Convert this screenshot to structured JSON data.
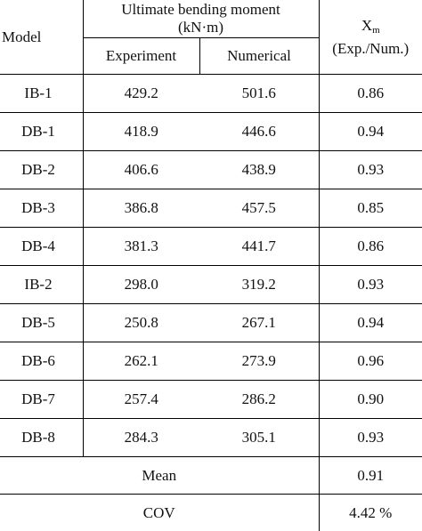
{
  "table": {
    "header": {
      "model": "Model",
      "group_title_line1": "Ultimate bending moment",
      "group_title_line2": "(kN·m)",
      "experiment": "Experiment",
      "numerical": "Numerical",
      "xm_symbol": "X",
      "xm_subscript": "m",
      "xm_ratio": "(Exp./Num.)"
    },
    "rows": [
      {
        "model": "IB-1",
        "experiment": "429.2",
        "numerical": "501.6",
        "xm": "0.86"
      },
      {
        "model": "DB-1",
        "experiment": "418.9",
        "numerical": "446.6",
        "xm": "0.94"
      },
      {
        "model": "DB-2",
        "experiment": "406.6",
        "numerical": "438.9",
        "xm": "0.93"
      },
      {
        "model": "DB-3",
        "experiment": "386.8",
        "numerical": "457.5",
        "xm": "0.85"
      },
      {
        "model": "DB-4",
        "experiment": "381.3",
        "numerical": "441.7",
        "xm": "0.86"
      },
      {
        "model": "IB-2",
        "experiment": "298.0",
        "numerical": "319.2",
        "xm": "0.93"
      },
      {
        "model": "DB-5",
        "experiment": "250.8",
        "numerical": "267.1",
        "xm": "0.94"
      },
      {
        "model": "DB-6",
        "experiment": "262.1",
        "numerical": "273.9",
        "xm": "0.96"
      },
      {
        "model": "DB-7",
        "experiment": "257.4",
        "numerical": "286.2",
        "xm": "0.90"
      },
      {
        "model": "DB-8",
        "experiment": "284.3",
        "numerical": "305.1",
        "xm": "0.93"
      }
    ],
    "summary": [
      {
        "label": "Mean",
        "value": "0.91"
      },
      {
        "label": "COV",
        "value": "4.42 %"
      }
    ]
  }
}
